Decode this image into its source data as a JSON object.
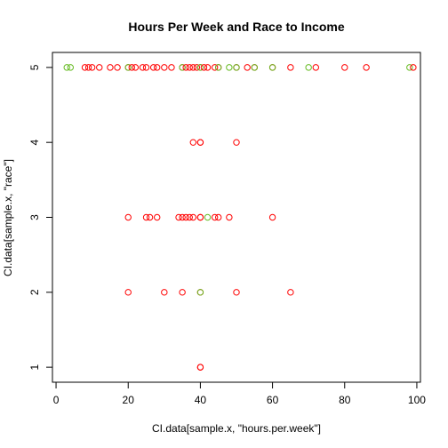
{
  "chart_data": {
    "type": "scatter",
    "title": "Hours Per Week and Race to Income",
    "xlabel": "CI.data[sample.x, \"hours.per.week\"]",
    "ylabel": "CI.data[sample.x, \"race\"]",
    "xlim": [
      -1,
      101
    ],
    "ylim": [
      0.8,
      5.2
    ],
    "xticks": [
      0,
      20,
      40,
      60,
      80,
      100
    ],
    "yticks": [
      1,
      2,
      3,
      4,
      5
    ],
    "grid": false,
    "legend": "none",
    "colors": {
      "red": "#ff0000",
      "green": "#66bb22"
    },
    "marker": "open-circle",
    "points": [
      {
        "x": 3,
        "y": 5,
        "c": "green"
      },
      {
        "x": 4,
        "y": 5,
        "c": "green"
      },
      {
        "x": 8,
        "y": 5,
        "c": "red"
      },
      {
        "x": 9,
        "y": 5,
        "c": "red"
      },
      {
        "x": 10,
        "y": 5,
        "c": "red"
      },
      {
        "x": 12,
        "y": 5,
        "c": "red"
      },
      {
        "x": 15,
        "y": 5,
        "c": "red"
      },
      {
        "x": 17,
        "y": 5,
        "c": "red"
      },
      {
        "x": 20,
        "y": 5,
        "c": "red"
      },
      {
        "x": 20,
        "y": 5,
        "c": "green"
      },
      {
        "x": 21,
        "y": 5,
        "c": "red"
      },
      {
        "x": 22,
        "y": 5,
        "c": "red"
      },
      {
        "x": 24,
        "y": 5,
        "c": "red"
      },
      {
        "x": 25,
        "y": 5,
        "c": "red"
      },
      {
        "x": 27,
        "y": 5,
        "c": "red"
      },
      {
        "x": 28,
        "y": 5,
        "c": "red"
      },
      {
        "x": 30,
        "y": 5,
        "c": "red"
      },
      {
        "x": 32,
        "y": 5,
        "c": "red"
      },
      {
        "x": 35,
        "y": 5,
        "c": "red"
      },
      {
        "x": 35,
        "y": 5,
        "c": "green"
      },
      {
        "x": 36,
        "y": 5,
        "c": "red"
      },
      {
        "x": 37,
        "y": 5,
        "c": "red"
      },
      {
        "x": 38,
        "y": 5,
        "c": "red"
      },
      {
        "x": 39,
        "y": 5,
        "c": "red"
      },
      {
        "x": 40,
        "y": 5,
        "c": "red"
      },
      {
        "x": 40,
        "y": 5,
        "c": "green"
      },
      {
        "x": 41,
        "y": 5,
        "c": "red"
      },
      {
        "x": 42,
        "y": 5,
        "c": "red"
      },
      {
        "x": 44,
        "y": 5,
        "c": "red"
      },
      {
        "x": 45,
        "y": 5,
        "c": "red"
      },
      {
        "x": 45,
        "y": 5,
        "c": "green"
      },
      {
        "x": 48,
        "y": 5,
        "c": "green"
      },
      {
        "x": 50,
        "y": 5,
        "c": "red"
      },
      {
        "x": 50,
        "y": 5,
        "c": "green"
      },
      {
        "x": 53,
        "y": 5,
        "c": "red"
      },
      {
        "x": 55,
        "y": 5,
        "c": "red"
      },
      {
        "x": 55,
        "y": 5,
        "c": "green"
      },
      {
        "x": 60,
        "y": 5,
        "c": "red"
      },
      {
        "x": 60,
        "y": 5,
        "c": "green"
      },
      {
        "x": 65,
        "y": 5,
        "c": "red"
      },
      {
        "x": 70,
        "y": 5,
        "c": "green"
      },
      {
        "x": 72,
        "y": 5,
        "c": "red"
      },
      {
        "x": 80,
        "y": 5,
        "c": "red"
      },
      {
        "x": 86,
        "y": 5,
        "c": "red"
      },
      {
        "x": 98,
        "y": 5,
        "c": "green"
      },
      {
        "x": 99,
        "y": 5,
        "c": "red"
      },
      {
        "x": 38,
        "y": 4,
        "c": "red"
      },
      {
        "x": 40,
        "y": 4,
        "c": "red"
      },
      {
        "x": 40,
        "y": 4,
        "c": "red"
      },
      {
        "x": 50,
        "y": 4,
        "c": "red"
      },
      {
        "x": 20,
        "y": 3,
        "c": "red"
      },
      {
        "x": 25,
        "y": 3,
        "c": "red"
      },
      {
        "x": 26,
        "y": 3,
        "c": "red"
      },
      {
        "x": 28,
        "y": 3,
        "c": "red"
      },
      {
        "x": 34,
        "y": 3,
        "c": "red"
      },
      {
        "x": 35,
        "y": 3,
        "c": "red"
      },
      {
        "x": 36,
        "y": 3,
        "c": "red"
      },
      {
        "x": 37,
        "y": 3,
        "c": "red"
      },
      {
        "x": 38,
        "y": 3,
        "c": "red"
      },
      {
        "x": 40,
        "y": 3,
        "c": "red"
      },
      {
        "x": 40,
        "y": 3,
        "c": "red"
      },
      {
        "x": 42,
        "y": 3,
        "c": "green"
      },
      {
        "x": 44,
        "y": 3,
        "c": "red"
      },
      {
        "x": 45,
        "y": 3,
        "c": "red"
      },
      {
        "x": 48,
        "y": 3,
        "c": "red"
      },
      {
        "x": 60,
        "y": 3,
        "c": "red"
      },
      {
        "x": 20,
        "y": 2,
        "c": "red"
      },
      {
        "x": 30,
        "y": 2,
        "c": "red"
      },
      {
        "x": 35,
        "y": 2,
        "c": "red"
      },
      {
        "x": 40,
        "y": 2,
        "c": "red"
      },
      {
        "x": 40,
        "y": 2,
        "c": "green"
      },
      {
        "x": 50,
        "y": 2,
        "c": "red"
      },
      {
        "x": 65,
        "y": 2,
        "c": "red"
      },
      {
        "x": 40,
        "y": 1,
        "c": "red"
      },
      {
        "x": 40,
        "y": 1,
        "c": "red"
      }
    ]
  }
}
